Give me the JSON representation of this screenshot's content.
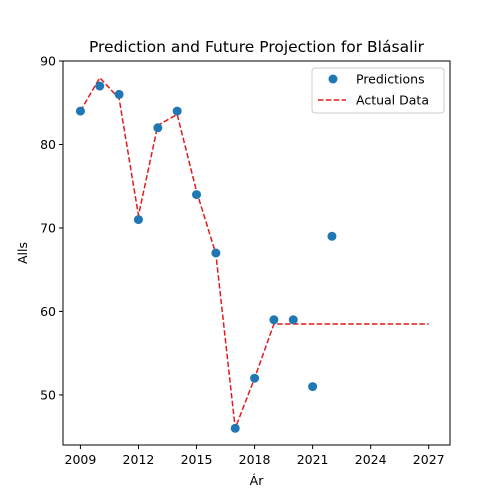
{
  "chart_data": {
    "type": "scatter",
    "title": "Prediction and Future Projection for Blásalir",
    "xlabel": "Ár",
    "ylabel": "Alls",
    "xlim": [
      2008.1,
      2028.1
    ],
    "ylim": [
      44,
      90
    ],
    "x_ticks": [
      2009,
      2012,
      2015,
      2018,
      2021,
      2024,
      2027
    ],
    "y_ticks": [
      50,
      60,
      70,
      80,
      90
    ],
    "grid": false,
    "legend_position": "top-right",
    "series": [
      {
        "name": "Predictions",
        "kind": "scatter",
        "color": "#1f77b4",
        "x": [
          2009,
          2010,
          2011,
          2012,
          2013,
          2014,
          2015,
          2016,
          2017,
          2018,
          2019,
          2020,
          2021,
          2022
        ],
        "y": [
          84,
          87,
          86,
          71,
          82,
          84,
          74,
          67,
          46,
          52,
          59,
          59,
          51,
          69
        ]
      },
      {
        "name": "Actual Data",
        "kind": "line",
        "style": "dashed",
        "color": "#e31a1c",
        "x": [
          2009,
          2010,
          2011,
          2012,
          2013,
          2014,
          2015,
          2016,
          2017,
          2018,
          2019,
          2020,
          2021,
          2022,
          2023,
          2024,
          2025,
          2026,
          2027
        ],
        "y": [
          84,
          88,
          85.5,
          71.5,
          82.3,
          83.6,
          74.4,
          66.9,
          46,
          52,
          58.5,
          58.5,
          58.5,
          58.5,
          58.5,
          58.5,
          58.5,
          58.5,
          58.5
        ]
      }
    ]
  }
}
